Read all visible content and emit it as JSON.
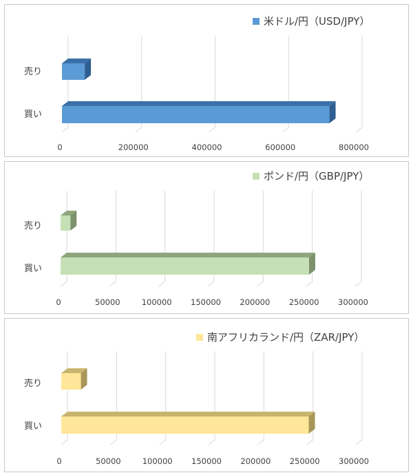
{
  "chart_data": [
    {
      "type": "bar",
      "orientation": "horizontal",
      "categories": [
        "売り",
        "買い"
      ],
      "series": [
        {
          "name": "米ドル/円（USD/JPY）",
          "values": [
            62000,
            728000
          ]
        }
      ],
      "xlim": [
        0,
        800000
      ],
      "ticks": [
        0,
        200000,
        400000,
        600000,
        800000
      ],
      "tick_labels": [
        "0",
        "200000",
        "400000",
        "600000",
        "800000"
      ],
      "grid": true,
      "legend": "top-right",
      "colors": {
        "front": "#5b9bd5",
        "top": "#3b70a8",
        "side": "#2f5f91"
      }
    },
    {
      "type": "bar",
      "orientation": "horizontal",
      "categories": [
        "売り",
        "買い"
      ],
      "series": [
        {
          "name": "ポンド/円（GBP/JPY）",
          "values": [
            10000,
            253000
          ]
        }
      ],
      "xlim": [
        0,
        300000
      ],
      "ticks": [
        0,
        50000,
        100000,
        150000,
        200000,
        250000,
        300000
      ],
      "tick_labels": [
        "0",
        "50000",
        "100000",
        "150000",
        "200000",
        "250000",
        "300000"
      ],
      "grid": true,
      "legend": "top-right",
      "colors": {
        "front": "#c5e0b4",
        "top": "#8fa67d",
        "side": "#7d916c"
      }
    },
    {
      "type": "bar",
      "orientation": "horizontal",
      "categories": [
        "売り",
        "買い"
      ],
      "series": [
        {
          "name": "南アフリカランド/円（ZAR/JPY）",
          "values": [
            20000,
            252000
          ]
        }
      ],
      "xlim": [
        0,
        300000
      ],
      "ticks": [
        0,
        50000,
        100000,
        150000,
        200000,
        250000,
        300000
      ],
      "tick_labels": [
        "0",
        "50000",
        "100000",
        "150000",
        "200000",
        "250000",
        "300000"
      ],
      "grid": true,
      "legend": "top-right",
      "colors": {
        "front": "#ffe699",
        "top": "#c9b46e",
        "side": "#a8965a"
      }
    }
  ]
}
